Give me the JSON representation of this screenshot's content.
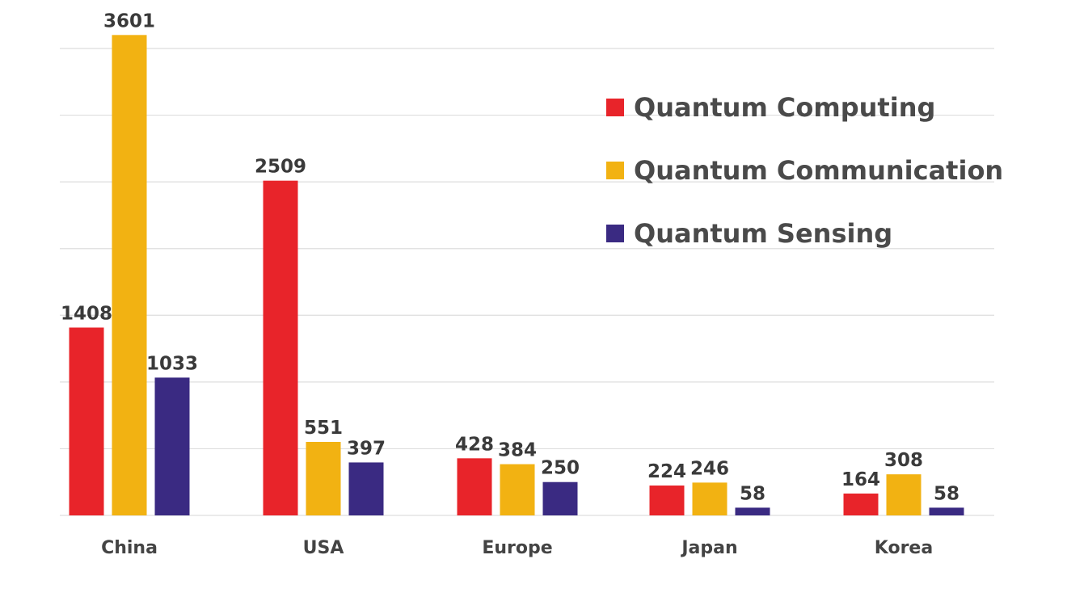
{
  "chart_data": {
    "type": "bar",
    "title": "",
    "xlabel": "",
    "ylabel": "",
    "categories": [
      "China",
      "USA",
      "Europe",
      "Japan",
      "Korea"
    ],
    "series": [
      {
        "name": "Quantum Computing",
        "color": "#e8242a",
        "values": [
          1408,
          2509,
          428,
          224,
          164
        ]
      },
      {
        "name": "Quantum Communication",
        "color": "#f2b212",
        "values": [
          3601,
          551,
          384,
          246,
          308
        ]
      },
      {
        "name": "Quantum Sensing",
        "color": "#3a2a82",
        "values": [
          1033,
          397,
          250,
          58,
          58
        ]
      }
    ],
    "ylim": [
      0,
      3500
    ],
    "y_gridlines": [
      0,
      500,
      1000,
      1500,
      2000,
      2500,
      3000,
      3500
    ],
    "y_tick_labels_shown": false,
    "grid": true,
    "legend_position": "top-right"
  }
}
